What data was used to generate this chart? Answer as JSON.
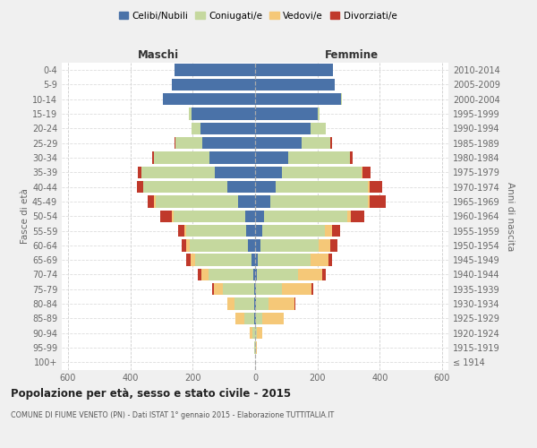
{
  "age_groups": [
    "100+",
    "95-99",
    "90-94",
    "85-89",
    "80-84",
    "75-79",
    "70-74",
    "65-69",
    "60-64",
    "55-59",
    "50-54",
    "45-49",
    "40-44",
    "35-39",
    "30-34",
    "25-29",
    "20-24",
    "15-19",
    "10-14",
    "5-9",
    "0-4"
  ],
  "birth_years": [
    "≤ 1914",
    "1915-1919",
    "1920-1924",
    "1925-1929",
    "1930-1934",
    "1935-1939",
    "1940-1944",
    "1945-1949",
    "1950-1954",
    "1955-1959",
    "1960-1964",
    "1965-1969",
    "1970-1974",
    "1975-1979",
    "1980-1984",
    "1985-1989",
    "1990-1994",
    "1995-1999",
    "2000-2004",
    "2005-2009",
    "2010-2014"
  ],
  "males": {
    "celibi": [
      0,
      0,
      0,
      2,
      2,
      3,
      5,
      12,
      22,
      28,
      32,
      55,
      90,
      130,
      145,
      170,
      175,
      205,
      295,
      268,
      258
    ],
    "coniugati": [
      0,
      2,
      10,
      32,
      65,
      100,
      145,
      180,
      188,
      192,
      230,
      265,
      268,
      235,
      178,
      85,
      28,
      6,
      2,
      0,
      0
    ],
    "vedovi": [
      0,
      2,
      8,
      28,
      22,
      28,
      22,
      16,
      10,
      6,
      5,
      3,
      2,
      0,
      0,
      0,
      0,
      0,
      0,
      0,
      0
    ],
    "divorziati": [
      0,
      0,
      0,
      0,
      0,
      6,
      12,
      12,
      16,
      22,
      38,
      22,
      20,
      12,
      8,
      3,
      2,
      0,
      0,
      0,
      0
    ]
  },
  "females": {
    "nubili": [
      0,
      0,
      0,
      2,
      2,
      3,
      5,
      10,
      16,
      22,
      28,
      48,
      65,
      85,
      105,
      150,
      178,
      200,
      275,
      255,
      250
    ],
    "coniugate": [
      0,
      2,
      6,
      22,
      42,
      82,
      132,
      168,
      188,
      202,
      268,
      315,
      298,
      258,
      198,
      92,
      48,
      6,
      2,
      0,
      0
    ],
    "vedove": [
      0,
      3,
      16,
      68,
      82,
      95,
      78,
      58,
      38,
      22,
      12,
      5,
      5,
      2,
      0,
      0,
      0,
      0,
      0,
      0,
      0
    ],
    "divorziate": [
      0,
      0,
      0,
      0,
      2,
      8,
      12,
      12,
      22,
      26,
      42,
      52,
      40,
      24,
      10,
      5,
      2,
      0,
      0,
      0,
      0
    ]
  },
  "colors": {
    "celibi": "#4a72a8",
    "coniugati": "#c5d89e",
    "vedovi": "#f5c878",
    "divorziati": "#c0392b"
  },
  "title": "Popolazione per età, sesso e stato civile - 2015",
  "subtitle": "COMUNE DI FIUME VENETO (PN) - Dati ISTAT 1° gennaio 2015 - Elaborazione TUTTITALIA.IT",
  "label_maschi": "Maschi",
  "label_femmine": "Femmine",
  "ylabel_left": "Fasce di età",
  "ylabel_right": "Anni di nascita",
  "xlim": 620,
  "bg_color": "#f0f0f0",
  "plot_bg": "#ffffff",
  "legend_labels": [
    "Celibi/Nubili",
    "Coniugati/e",
    "Vedovi/e",
    "Divorziati/e"
  ]
}
